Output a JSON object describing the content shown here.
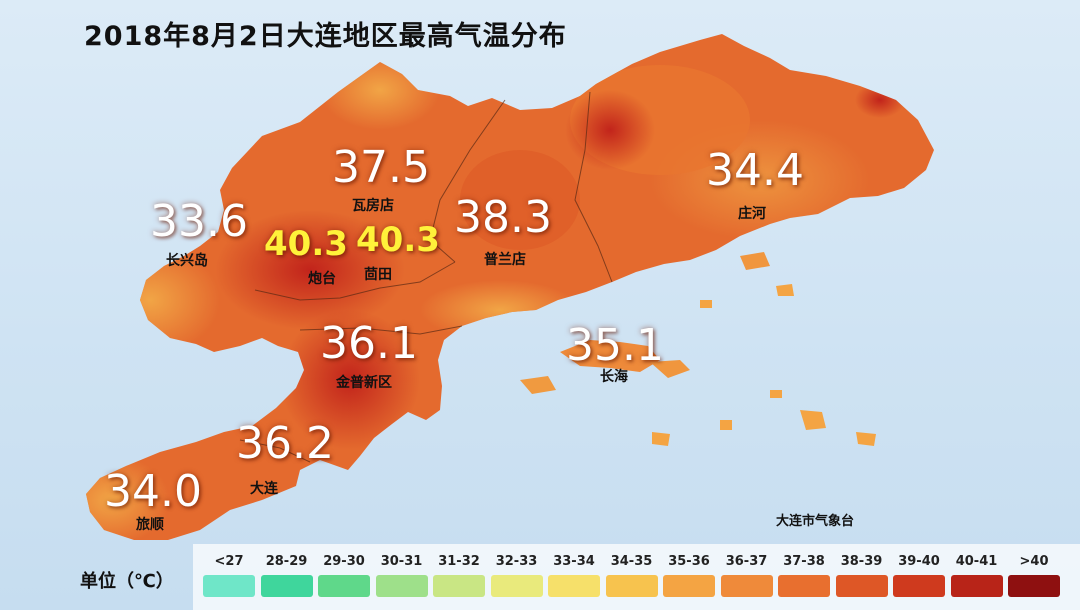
{
  "title": "2018年8月2日大连地区最高气温分布",
  "source": "大连市气象台",
  "legend": {
    "unit_label": "单位（℃）",
    "items": [
      {
        "label": "<27",
        "color": "#6fe6c8"
      },
      {
        "label": "28-29",
        "color": "#3fd69c"
      },
      {
        "label": "29-30",
        "color": "#5fd88a"
      },
      {
        "label": "30-31",
        "color": "#9ee08a"
      },
      {
        "label": "31-32",
        "color": "#c9e684"
      },
      {
        "label": "32-33",
        "color": "#e9ea7c"
      },
      {
        "label": "33-34",
        "color": "#f6e06a"
      },
      {
        "label": "34-35",
        "color": "#f7c34e"
      },
      {
        "label": "35-36",
        "color": "#f4a443"
      },
      {
        "label": "36-37",
        "color": "#ef8a3a"
      },
      {
        "label": "37-38",
        "color": "#e86f2f"
      },
      {
        "label": "38-39",
        "color": "#de5726"
      },
      {
        "label": "39-40",
        "color": "#cf3a1e"
      },
      {
        "label": "40-41",
        "color": "#b82418"
      },
      {
        "label": ">40",
        "color": "#8e1010"
      }
    ]
  },
  "stations": [
    {
      "name": "瓦房店",
      "temp": "37.5"
    },
    {
      "name": "长兴岛",
      "temp": "33.6"
    },
    {
      "name": "炮台",
      "temp": "40.3"
    },
    {
      "name": "茴田",
      "temp": "40.3"
    },
    {
      "name": "普兰店",
      "temp": "38.3"
    },
    {
      "name": "庄河",
      "temp": "34.4"
    },
    {
      "name": "金普新区",
      "temp": "36.1"
    },
    {
      "name": "长海",
      "temp": "35.1"
    },
    {
      "name": "大连",
      "temp": "36.2"
    },
    {
      "name": "旅顺",
      "temp": "34.0"
    }
  ]
}
